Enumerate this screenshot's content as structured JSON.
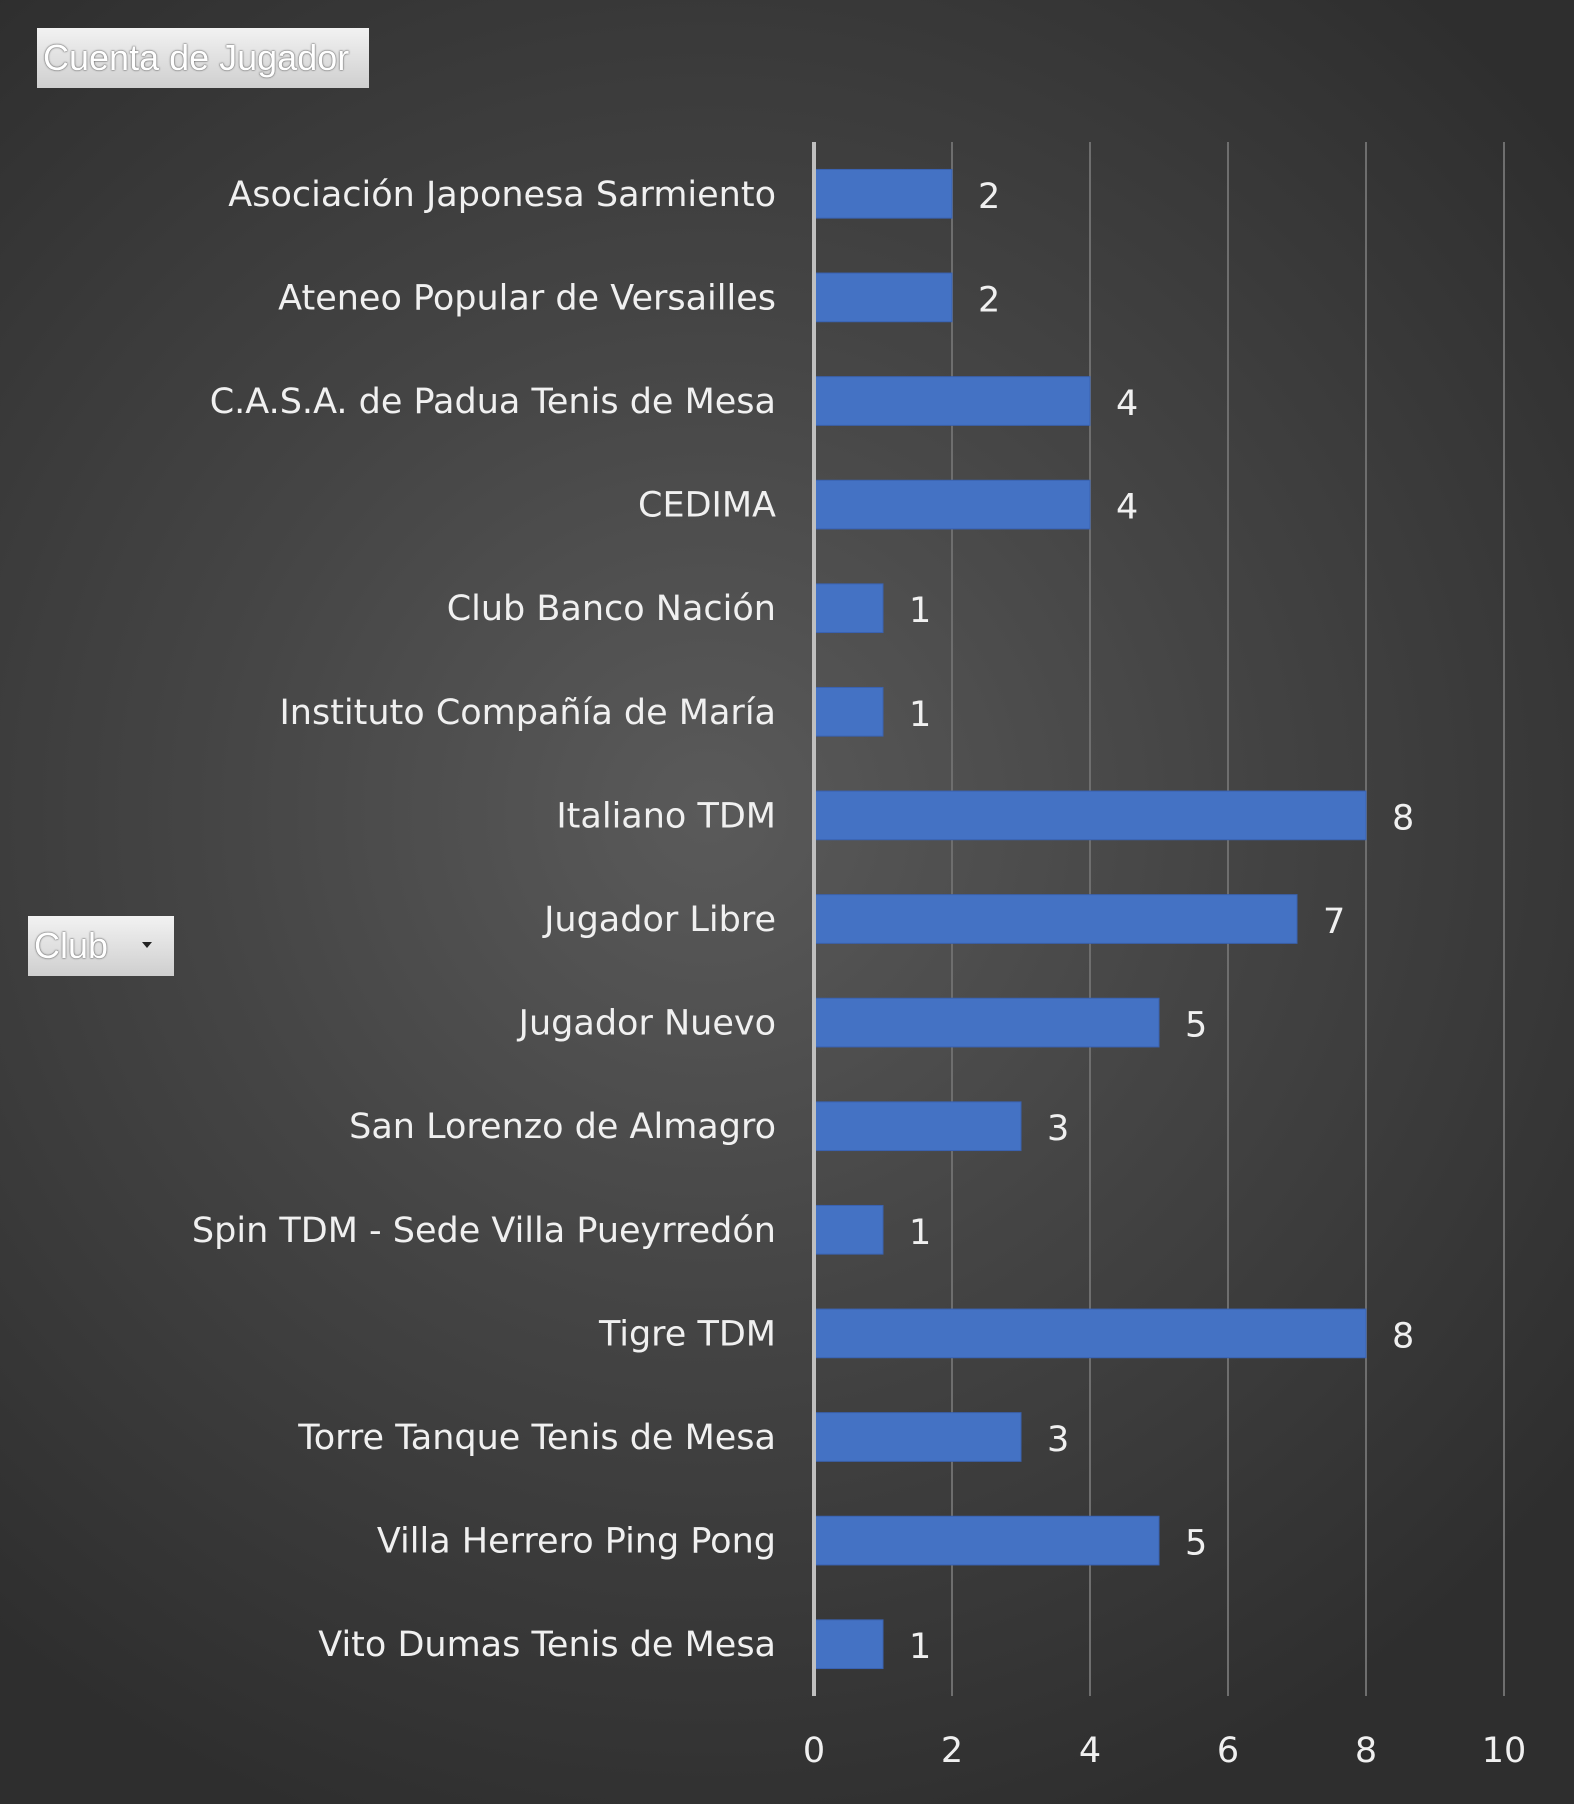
{
  "buttons": {
    "value_field": "Cuenta de Jugador",
    "axis_field": "Club"
  },
  "colors": {
    "bar": "#4472c4",
    "gridline": "#6e6e6e",
    "axis": "#bfbfbf",
    "text": "#f0f0f0"
  },
  "chart_data": {
    "type": "bar",
    "orientation": "horizontal",
    "categories": [
      "Asociación Japonesa Sarmiento",
      "Ateneo Popular de Versailles",
      "C.A.S.A. de Padua Tenis de Mesa",
      "CEDIMA",
      "Club Banco Nación",
      "Instituto Compañía de María",
      "Italiano TDM",
      "Jugador Libre",
      "Jugador Nuevo",
      "San Lorenzo de Almagro",
      "Spin TDM - Sede Villa Pueyrredón",
      "Tigre TDM",
      "Torre Tanque Tenis de Mesa",
      "Villa Herrero Ping Pong",
      "Vito Dumas Tenis de Mesa"
    ],
    "values": [
      2,
      2,
      4,
      4,
      1,
      1,
      8,
      7,
      5,
      3,
      1,
      8,
      3,
      5,
      1
    ],
    "xlim": [
      0,
      10
    ],
    "xticks": [
      0,
      2,
      4,
      6,
      8,
      10
    ],
    "grid": true,
    "data_labels": true
  }
}
